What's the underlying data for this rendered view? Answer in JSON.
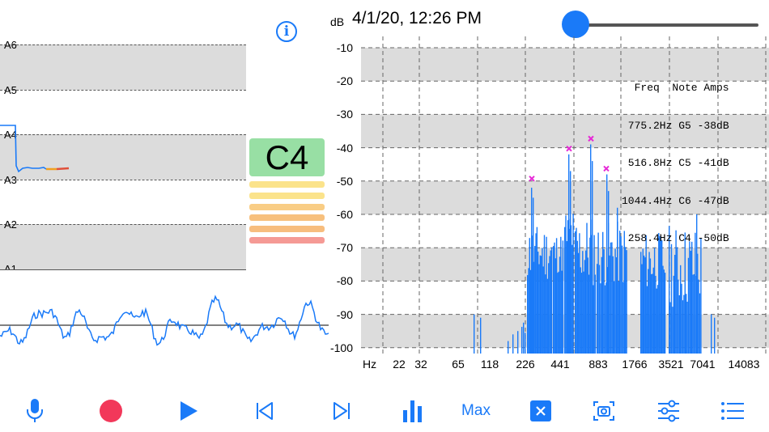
{
  "pitch_graph": {
    "note_labels": [
      "A6",
      "A5",
      "A4",
      "A3",
      "A2",
      "A1"
    ]
  },
  "info_button": {
    "label": "i"
  },
  "note_indicator": {
    "note": "C4",
    "level_bar_colors": [
      "#fbe38b",
      "#fbe38b",
      "#f9cd85",
      "#f7c07d",
      "#f7bd7e",
      "#f59a95"
    ]
  },
  "spectrum": {
    "db_unit": "dB",
    "timestamp": "4/1/20, 12:26 PM",
    "volume_level": 0,
    "db_ticks": [
      "-10",
      "-20",
      "-30",
      "-40",
      "-50",
      "-60",
      "-70",
      "-80",
      "-90",
      "-100"
    ],
    "hz_unit": "Hz",
    "hz_ticks": [
      "22",
      "32",
      "65",
      "118",
      "226",
      "441",
      "883",
      "1766",
      "3521",
      "7041",
      "14083"
    ],
    "peak_table": {
      "header": "Freq  Note Amps",
      "rows": [
        "775.2Hz G5 -38dB",
        "516.8Hz C5 -41dB",
        "1044.4Hz C6 -47dB",
        "258.4Hz C4 -50dB"
      ]
    },
    "accent_color": "#1a7af8",
    "peak_marker_color": "#e62ad6"
  },
  "toolbar": {
    "microphone": "microphone-icon",
    "record": "record-icon",
    "play": "play-icon",
    "previous": "skip-back-icon",
    "next": "skip-forward-icon",
    "spectrum": "bar-chart-icon",
    "max_label": "Max",
    "close": "close-square-icon",
    "snapshot": "camera-icon",
    "settings": "sliders-icon",
    "list": "list-icon"
  }
}
